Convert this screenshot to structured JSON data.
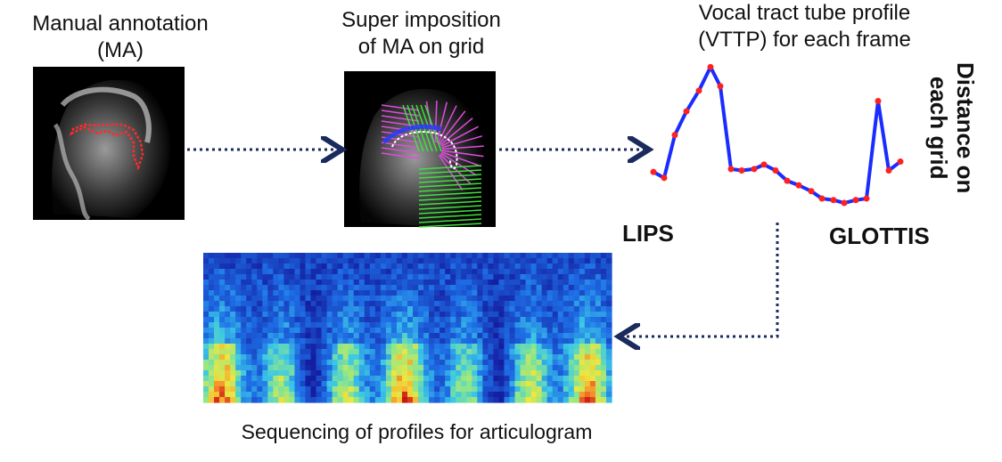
{
  "labels": {
    "manual_annotation": [
      "Manual annotation",
      "(MA)"
    ],
    "superimposition": [
      "Super imposition",
      "of MA on grid"
    ],
    "vttp": [
      "Vocal tract tube profile",
      "(VTTP) for each frame"
    ],
    "distance": [
      "Distance on",
      "each grid"
    ],
    "lips": "LIPS",
    "glottis": "GLOTTIS",
    "sequencing": "Sequencing of profiles for articulogram"
  },
  "colors": {
    "arrow": "#1a2a5c",
    "profile_line": "#1a2cff",
    "profile_point": "#ff2020",
    "annotation": "#ff2a2a",
    "grid_front": "#e04ae0",
    "grid_back": "#40e040"
  },
  "profile_values": [
    0.27,
    0.23,
    0.52,
    0.68,
    0.82,
    0.98,
    0.85,
    0.29,
    0.28,
    0.29,
    0.32,
    0.28,
    0.21,
    0.18,
    0.14,
    0.09,
    0.08,
    0.06,
    0.08,
    0.09,
    0.75,
    0.28,
    0.34
  ],
  "icons": [
    "mri-midsagittal-image",
    "mri-with-grid-image",
    "arrow-right-icon",
    "arrow-left-icon"
  ]
}
